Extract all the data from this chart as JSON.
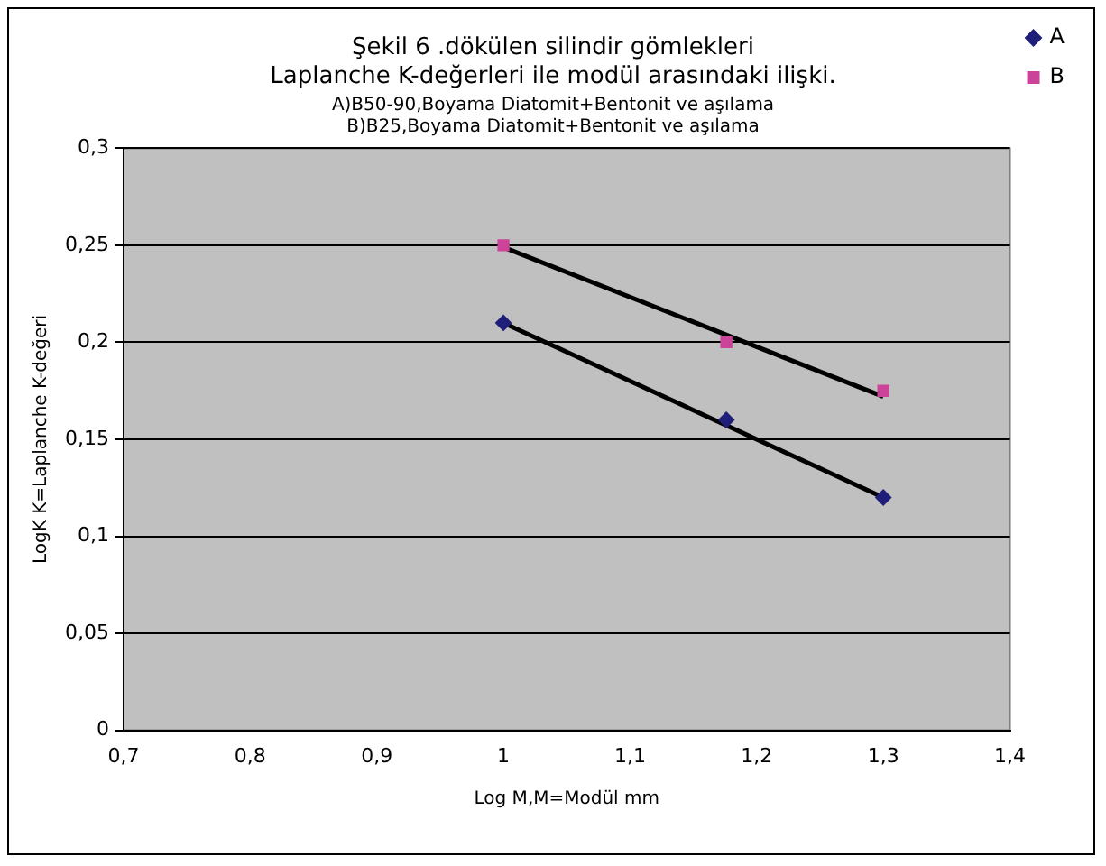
{
  "chart_data": {
    "type": "scatter",
    "title": [
      "Şekil 6 .dökülen silindir gömlekleri",
      "Laplanche K-değerleri ile modül arasındaki ilişki."
    ],
    "subtitle": [
      "A)B50-90,Boyama Diatomit+Bentonit ve aşılama",
      "B)B25,Boyama Diatomit+Bentonit ve aşılama"
    ],
    "xlabel": "Log M,M=Modül mm",
    "ylabel": "LogK K=Laplanche K-değeri",
    "series": [
      {
        "name": "A",
        "marker": "diamond",
        "color": "#1f1f7a",
        "x": [
          1,
          1.176,
          1.3
        ],
        "values": [
          0.21,
          0.16,
          0.12
        ]
      },
      {
        "name": "B",
        "marker": "square",
        "color": "#cc4499",
        "x": [
          1,
          1.176,
          1.3
        ],
        "values": [
          0.25,
          0.2,
          0.175
        ]
      },
      {
        "type": "line",
        "marker": "none",
        "color": "#000000",
        "x": [
          1,
          1.3
        ],
        "values": [
          0.21,
          0.12
        ]
      },
      {
        "type": "line",
        "marker": "none",
        "color": "#000000",
        "x": [
          1,
          1.3
        ],
        "values": [
          0.249,
          0.172
        ]
      }
    ],
    "xlim": [
      0.7,
      1.4
    ],
    "xticks": [
      {
        "value": 0.7,
        "label": "0,7"
      },
      {
        "value": 0.8,
        "label": "0,8"
      },
      {
        "value": 0.9,
        "label": "0,9"
      },
      1,
      {
        "value": 1.1,
        "label": "1,1"
      },
      {
        "value": 1.2,
        "label": "1,2"
      },
      {
        "value": 1.3,
        "label": "1,3"
      },
      {
        "value": 1.4,
        "label": "1,4"
      }
    ],
    "ylim": [
      0,
      0.3
    ],
    "yticks": [
      0,
      {
        "value": 0.05,
        "label": "0,05"
      },
      {
        "value": 0.1,
        "label": "0,1"
      },
      {
        "value": 0.15,
        "label": "0,15"
      },
      {
        "value": 0.2,
        "label": "0,2"
      },
      {
        "value": 0.25,
        "label": "0,25"
      },
      {
        "value": 0.3,
        "label": "0,3"
      }
    ],
    "grid": "y",
    "legend": "right"
  }
}
